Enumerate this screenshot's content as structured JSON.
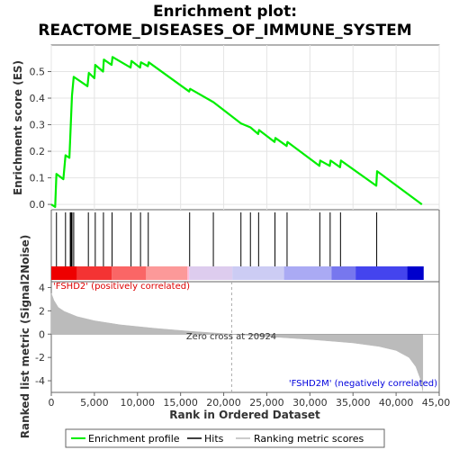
{
  "chart_data": {
    "type": "line",
    "title_line1": "Enrichment plot:",
    "title_line2": "REACTOME_DISEASES_OF_IMMUNE_SYSTEM",
    "es_panel": {
      "ylabel": "Enrichment score (ES)",
      "ylim": [
        -0.02,
        0.6
      ],
      "yticks": [
        0.0,
        0.1,
        0.2,
        0.3,
        0.4,
        0.5
      ],
      "ytick_labels": [
        "0.0",
        "0.1",
        "0.2",
        "0.3",
        "0.4",
        "0.5"
      ],
      "line_color": "#00ee00",
      "points": [
        [
          0,
          0.0
        ],
        [
          450,
          -0.01
        ],
        [
          600,
          0.115
        ],
        [
          1400,
          0.095
        ],
        [
          1650,
          0.185
        ],
        [
          2100,
          0.175
        ],
        [
          2200,
          0.255
        ],
        [
          2300,
          0.33
        ],
        [
          2400,
          0.41
        ],
        [
          2600,
          0.48
        ],
        [
          4200,
          0.445
        ],
        [
          4350,
          0.495
        ],
        [
          5000,
          0.475
        ],
        [
          5100,
          0.525
        ],
        [
          6000,
          0.5
        ],
        [
          6100,
          0.545
        ],
        [
          7000,
          0.525
        ],
        [
          7100,
          0.555
        ],
        [
          9200,
          0.515
        ],
        [
          9300,
          0.54
        ],
        [
          10300,
          0.515
        ],
        [
          10400,
          0.535
        ],
        [
          11200,
          0.52
        ],
        [
          11300,
          0.535
        ],
        [
          16000,
          0.425
        ],
        [
          16100,
          0.435
        ],
        [
          18800,
          0.385
        ],
        [
          22000,
          0.305
        ],
        [
          23100,
          0.29
        ],
        [
          24000,
          0.265
        ],
        [
          24100,
          0.28
        ],
        [
          25900,
          0.235
        ],
        [
          26000,
          0.25
        ],
        [
          27300,
          0.22
        ],
        [
          27400,
          0.235
        ],
        [
          31100,
          0.145
        ],
        [
          31200,
          0.165
        ],
        [
          32300,
          0.145
        ],
        [
          32400,
          0.165
        ],
        [
          33500,
          0.14
        ],
        [
          33600,
          0.165
        ],
        [
          37700,
          0.07
        ],
        [
          37800,
          0.125
        ],
        [
          43000,
          0.0
        ]
      ]
    },
    "hits": [
      600,
      1650,
      2200,
      2300,
      2400,
      2600,
      4300,
      5100,
      6050,
      7050,
      9250,
      10350,
      11250,
      16050,
      18800,
      22000,
      23100,
      24050,
      25950,
      27350,
      31150,
      32350,
      33550,
      37750
    ],
    "ranked_panel": {
      "ylabel": "Ranked list metric (Signal2Noise)",
      "ylim": [
        -5,
        4.5
      ],
      "yticks": [
        -4,
        -2,
        0,
        2,
        4
      ],
      "ytick_labels": [
        "-4",
        "-2",
        "0",
        "2",
        "4"
      ],
      "zero_cross_rank": 20924,
      "zero_cross_text": "Zero cross at 20924",
      "pos_label": "'FSHD2' (positively correlated)",
      "neg_label": "'FSHD2M' (negatively correlated)",
      "pos_color": "#dd0000",
      "neg_color": "#0000dd",
      "fill_color": "#bbbbbb",
      "profile": [
        [
          0,
          3.5
        ],
        [
          300,
          2.9
        ],
        [
          800,
          2.3
        ],
        [
          1500,
          1.95
        ],
        [
          3000,
          1.5
        ],
        [
          5000,
          1.15
        ],
        [
          8000,
          0.8
        ],
        [
          12000,
          0.5
        ],
        [
          16000,
          0.25
        ],
        [
          20924,
          0.0
        ],
        [
          25000,
          -0.2
        ],
        [
          30000,
          -0.45
        ],
        [
          35000,
          -0.75
        ],
        [
          38000,
          -1.05
        ],
        [
          40000,
          -1.4
        ],
        [
          41500,
          -2.0
        ],
        [
          42300,
          -2.8
        ],
        [
          42800,
          -3.8
        ],
        [
          43100,
          -4.9
        ]
      ]
    },
    "heatmap_colors": [
      "#ee0000",
      "#f43333",
      "#fa6666",
      "#fc9999",
      "#ffbbdd",
      "#ddccee",
      "#ccccf4",
      "#aaaaf4",
      "#7777ee",
      "#4444ee",
      "#0000cc"
    ],
    "heatmap_breaks": [
      0,
      3000,
      7000,
      11000,
      15800,
      16000,
      21000,
      27000,
      32500,
      35300,
      41300,
      43200
    ],
    "xaxis": {
      "xlabel": "Rank in Ordered Dataset",
      "xlim": [
        0,
        45000
      ],
      "xticks": [
        0,
        5000,
        10000,
        15000,
        20000,
        25000,
        30000,
        35000,
        40000,
        45000
      ],
      "xtick_labels": [
        "0",
        "5,000",
        "10,000",
        "15,000",
        "20,000",
        "25,000",
        "30,000",
        "35,000",
        "40,000",
        "45,000"
      ]
    },
    "legend": {
      "items": [
        {
          "label": "Enrichment profile",
          "color": "#00ee00"
        },
        {
          "label": "Hits",
          "color": "#000000"
        },
        {
          "label": "Ranking metric scores",
          "color": "#bbbbbb"
        }
      ]
    }
  }
}
